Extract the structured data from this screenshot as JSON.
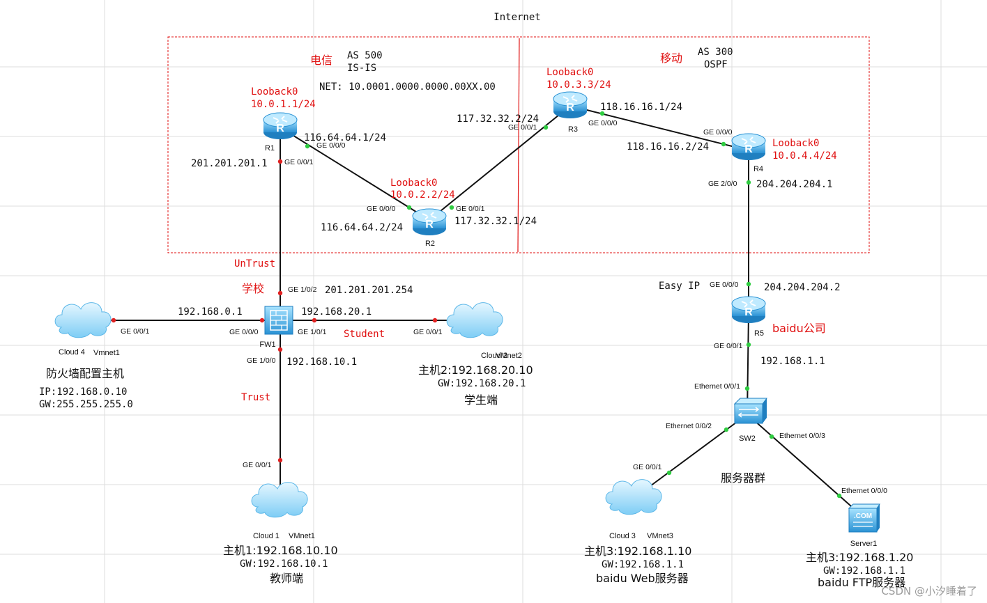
{
  "title": "Internet",
  "watermark": "CSDN @小汐睡着了",
  "colors": {
    "accent_red": "#e01010",
    "link": "#111111",
    "device": "#3aa0dc",
    "port_dot": "#2ecc40"
  },
  "as_left": {
    "isp": "电信",
    "as": "AS 500",
    "proto": "IS-IS",
    "net": "NET: 10.0001.0000.0000.00XX.00"
  },
  "as_right": {
    "isp": "移动",
    "as": "AS 300",
    "proto": "OSPF"
  },
  "devices": {
    "r1": {
      "label": "R1",
      "loopback_name": "Looback0",
      "loopback_ip": "10.0.1.1/24"
    },
    "r2": {
      "label": "R2",
      "loopback_name": "Looback0",
      "loopback_ip": "10.0.2.2/24"
    },
    "r3": {
      "label": "R3",
      "loopback_name": "Looback0",
      "loopback_ip": "10.0.3.3/24"
    },
    "r4": {
      "label": "R4",
      "loopback_name": "Looback0",
      "loopback_ip": "10.0.4.4/24"
    },
    "r5": {
      "label": "R5",
      "name": "baidu公司",
      "nat": "Easy IP"
    },
    "fw1": {
      "label": "FW1",
      "name": "学校"
    },
    "sw2": {
      "label": "SW2",
      "name": "服务器群"
    },
    "server1": {
      "label": "Server1",
      "icon_text": ".COM",
      "host": "主机3:192.168.1.20",
      "gw": "GW:192.168.1.1",
      "role": "baidu FTP服务器"
    },
    "cloud4": {
      "label": "Cloud 4",
      "vmnet": "Vmnet1",
      "title": "防火墙配置主机",
      "ip": "IP:192.168.0.10",
      "gw": "GW:255.255.255.0"
    },
    "cloud2": {
      "label": "Cloud 2",
      "vmnet": "VMnet2",
      "host": "主机2:192.168.20.10",
      "gw": "GW:192.168.20.1",
      "role": "学生端"
    },
    "cloud1": {
      "label": "Cloud 1",
      "vmnet": "VMnet1",
      "host": "主机1:192.168.10.10",
      "gw": "GW:192.168.10.1",
      "role": "教师端"
    },
    "cloud3": {
      "label": "Cloud 3",
      "vmnet": "VMnet3",
      "host": "主机3:192.168.1.10",
      "gw": "GW:192.168.1.1",
      "role": "baidu Web服务器"
    }
  },
  "ports": {
    "r1_g000": "GE 0/0/0",
    "r1_g001": "GE 0/0/1",
    "r2_g000": "GE 0/0/0",
    "r2_g001": "GE 0/0/1",
    "r3_g001": "GE 0/0/1",
    "r3_g000": "GE 0/0/0",
    "r4_g000": "GE 0/0/0",
    "r4_g200": "GE 2/0/0",
    "r5_g000": "GE 0/0/0",
    "r5_g001": "GE 0/0/1",
    "fw_g102": "GE 1/0/2",
    "fw_g000": "GE 0/0/0",
    "fw_g101": "GE 1/0/1",
    "fw_g100": "GE 1/0/0",
    "c4_g001": "GE 0/0/1",
    "c2_g001": "GE 0/0/1",
    "c1_g001": "GE 0/0/1",
    "c3_g001": "GE 0/0/1",
    "sw_e001": "Ethernet 0/0/1",
    "sw_e002": "Ethernet 0/0/2",
    "sw_e003": "Ethernet 0/0/3",
    "srv_e000": "Ethernet 0/0/0"
  },
  "ips": {
    "r1_r2_r1": "116.64.64.1/24",
    "r1_r2_r2": "116.64.64.2/24",
    "r2_r3_r2": "117.32.32.1/24",
    "r2_r3_r3": "117.32.32.2/24",
    "r3_r4_r3": "118.16.16.1/24",
    "r3_r4_r4": "118.16.16.2/24",
    "r1_fw_r1": "201.201.201.1",
    "r1_fw_fw": "201.201.201.254",
    "r4_r5_r4": "204.204.204.1",
    "r4_r5_r5": "204.204.204.2",
    "fw_c4": "192.168.0.1",
    "fw_c2": "192.168.20.1",
    "fw_c1": "192.168.10.1",
    "r5_sw": "192.168.1.1"
  },
  "zones": {
    "untrust": "UnTrust",
    "trust": "Trust",
    "student": "Student"
  }
}
